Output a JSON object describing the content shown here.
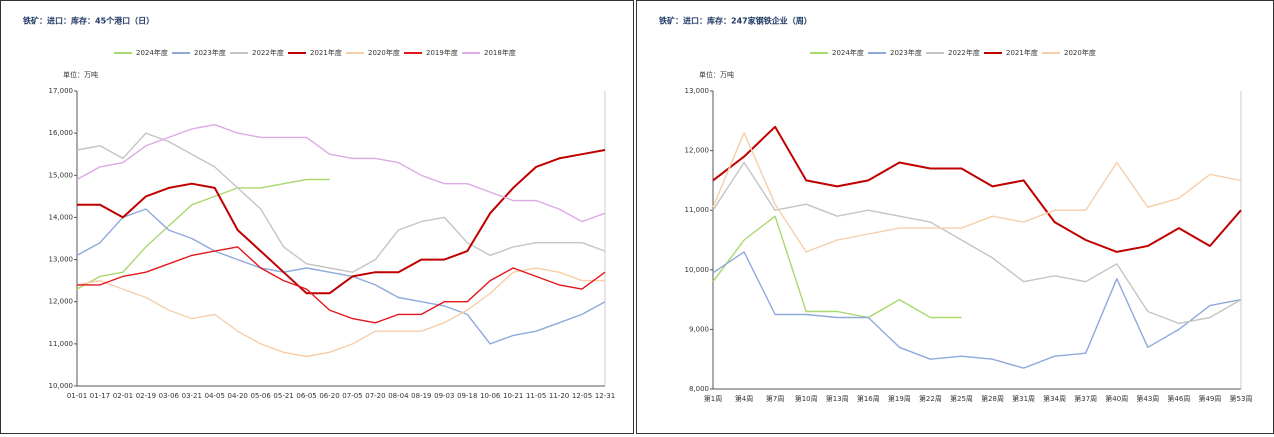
{
  "chart_data": [
    {
      "type": "line",
      "title": "铁矿：进口：库存：45个港口（日）",
      "unit": "单位：万吨",
      "categories": [
        "01-01",
        "01-17",
        "02-01",
        "02-19",
        "03-06",
        "03-21",
        "04-05",
        "04-20",
        "05-06",
        "05-21",
        "06-05",
        "06-20",
        "07-05",
        "07-20",
        "08-04",
        "08-19",
        "09-03",
        "09-18",
        "10-06",
        "10-21",
        "11-05",
        "11-20",
        "12-05",
        "12-31"
      ],
      "ylim": [
        10000,
        17000
      ],
      "yticks": [
        {
          "value": 10000,
          "label": "10,000"
        },
        {
          "value": 11000,
          "label": "11,000"
        },
        {
          "value": 12000,
          "label": "12,000"
        },
        {
          "value": 13000,
          "label": "13,000"
        },
        {
          "value": 14000,
          "label": "14,000"
        },
        {
          "value": 15000,
          "label": "15,000"
        },
        {
          "value": 16000,
          "label": "16,000"
        },
        {
          "value": 17000,
          "label": "17,000"
        }
      ],
      "series": [
        {
          "name": "2024年度",
          "color": "#a9d86e",
          "values": [
            12300,
            12600,
            12700,
            13300,
            13800,
            14300,
            14500,
            14700,
            14700,
            14800,
            14900,
            14900,
            null,
            null,
            null,
            null,
            null,
            null,
            null,
            null,
            null,
            null,
            null,
            null
          ]
        },
        {
          "name": "2023年度",
          "color": "#8fa9db",
          "values": [
            13100,
            13400,
            14000,
            14200,
            13700,
            13500,
            13200,
            13000,
            12800,
            12700,
            12800,
            12700,
            12600,
            12400,
            12100,
            12000,
            11900,
            11700,
            11000,
            11200,
            11300,
            11500,
            11700,
            12000
          ]
        },
        {
          "name": "2022年度",
          "color": "#c4c4c4",
          "values": [
            15600,
            15700,
            15400,
            16000,
            15800,
            15500,
            15200,
            14700,
            14200,
            13300,
            12900,
            12800,
            12700,
            13000,
            13700,
            13900,
            14000,
            13400,
            13100,
            13300,
            13400,
            13400,
            13400,
            13200
          ]
        },
        {
          "name": "2021年度",
          "color": "#c00000",
          "values": [
            14300,
            14300,
            14000,
            14500,
            14700,
            14800,
            14700,
            13700,
            13200,
            12700,
            12200,
            12200,
            12600,
            12700,
            12700,
            13000,
            13000,
            13200,
            14100,
            14700,
            15200,
            15400,
            15500,
            15600
          ]
        },
        {
          "name": "2020年度",
          "color": "#f6cfa8",
          "values": [
            12400,
            12500,
            12300,
            12100,
            11800,
            11600,
            11700,
            11300,
            11000,
            10800,
            10700,
            10800,
            11000,
            11300,
            11300,
            11300,
            11500,
            11800,
            12200,
            12700,
            12800,
            12700,
            12500,
            12500
          ]
        },
        {
          "name": "2019年度",
          "color": "#e3161c",
          "values": [
            12400,
            12400,
            12600,
            12700,
            12900,
            13100,
            13200,
            13300,
            12800,
            12500,
            12300,
            11800,
            11600,
            11500,
            11700,
            11700,
            12000,
            12000,
            12500,
            12800,
            12600,
            12400,
            12300,
            12700
          ]
        },
        {
          "name": "2018年度",
          "color": "#dcaae6",
          "values": [
            14900,
            15200,
            15300,
            15700,
            15900,
            16100,
            16200,
            16000,
            15900,
            15900,
            15900,
            15500,
            15400,
            15400,
            15300,
            15000,
            14800,
            14800,
            14600,
            14400,
            14400,
            14200,
            13900,
            14100
          ]
        }
      ]
    },
    {
      "type": "line",
      "title": "铁矿：进口：库存：247家钢铁企业（周）",
      "unit": "单位：万吨",
      "categories": [
        "第1周",
        "第4周",
        "第7周",
        "第10周",
        "第13周",
        "第16周",
        "第19周",
        "第22周",
        "第25周",
        "第28周",
        "第31周",
        "第34周",
        "第37周",
        "第40周",
        "第43周",
        "第46周",
        "第49周",
        "第53周"
      ],
      "ylim": [
        8000,
        13000
      ],
      "yticks": [
        {
          "value": 8000,
          "label": "8,000"
        },
        {
          "value": 9000,
          "label": "9,000"
        },
        {
          "value": 10000,
          "label": "10,000"
        },
        {
          "value": 11000,
          "label": "11,000"
        },
        {
          "value": 12000,
          "label": "12,000"
        },
        {
          "value": 13000,
          "label": "13,000"
        }
      ],
      "series": [
        {
          "name": "2024年度",
          "color": "#a9d86e",
          "values": [
            9800,
            10500,
            10900,
            9300,
            9300,
            9200,
            9500,
            9200,
            9200,
            null,
            null,
            null,
            null,
            null,
            null,
            null,
            null,
            null
          ]
        },
        {
          "name": "2023年度",
          "color": "#8fa9db",
          "values": [
            9950,
            10300,
            9250,
            9250,
            9200,
            9200,
            8700,
            8500,
            8550,
            8500,
            8350,
            8550,
            8600,
            9850,
            8700,
            9000,
            9400,
            9500
          ]
        },
        {
          "name": "2022年度",
          "color": "#c4c4c4",
          "values": [
            11000,
            11800,
            11000,
            11100,
            10900,
            11000,
            10900,
            10800,
            10500,
            10200,
            9800,
            9900,
            9800,
            10100,
            9300,
            9100,
            9200,
            9500
          ]
        },
        {
          "name": "2021年度",
          "color": "#c00000",
          "values": [
            11500,
            11900,
            12400,
            11500,
            11400,
            11500,
            11800,
            11700,
            11700,
            11400,
            11500,
            10800,
            10500,
            10300,
            10400,
            10700,
            10400,
            11000
          ]
        },
        {
          "name": "2020年度",
          "color": "#f6cfa8",
          "values": [
            11050,
            12300,
            11100,
            10300,
            10500,
            10600,
            10700,
            10700,
            10700,
            10900,
            10800,
            11000,
            11000,
            11800,
            11050,
            11200,
            11600,
            11500
          ]
        }
      ]
    }
  ]
}
